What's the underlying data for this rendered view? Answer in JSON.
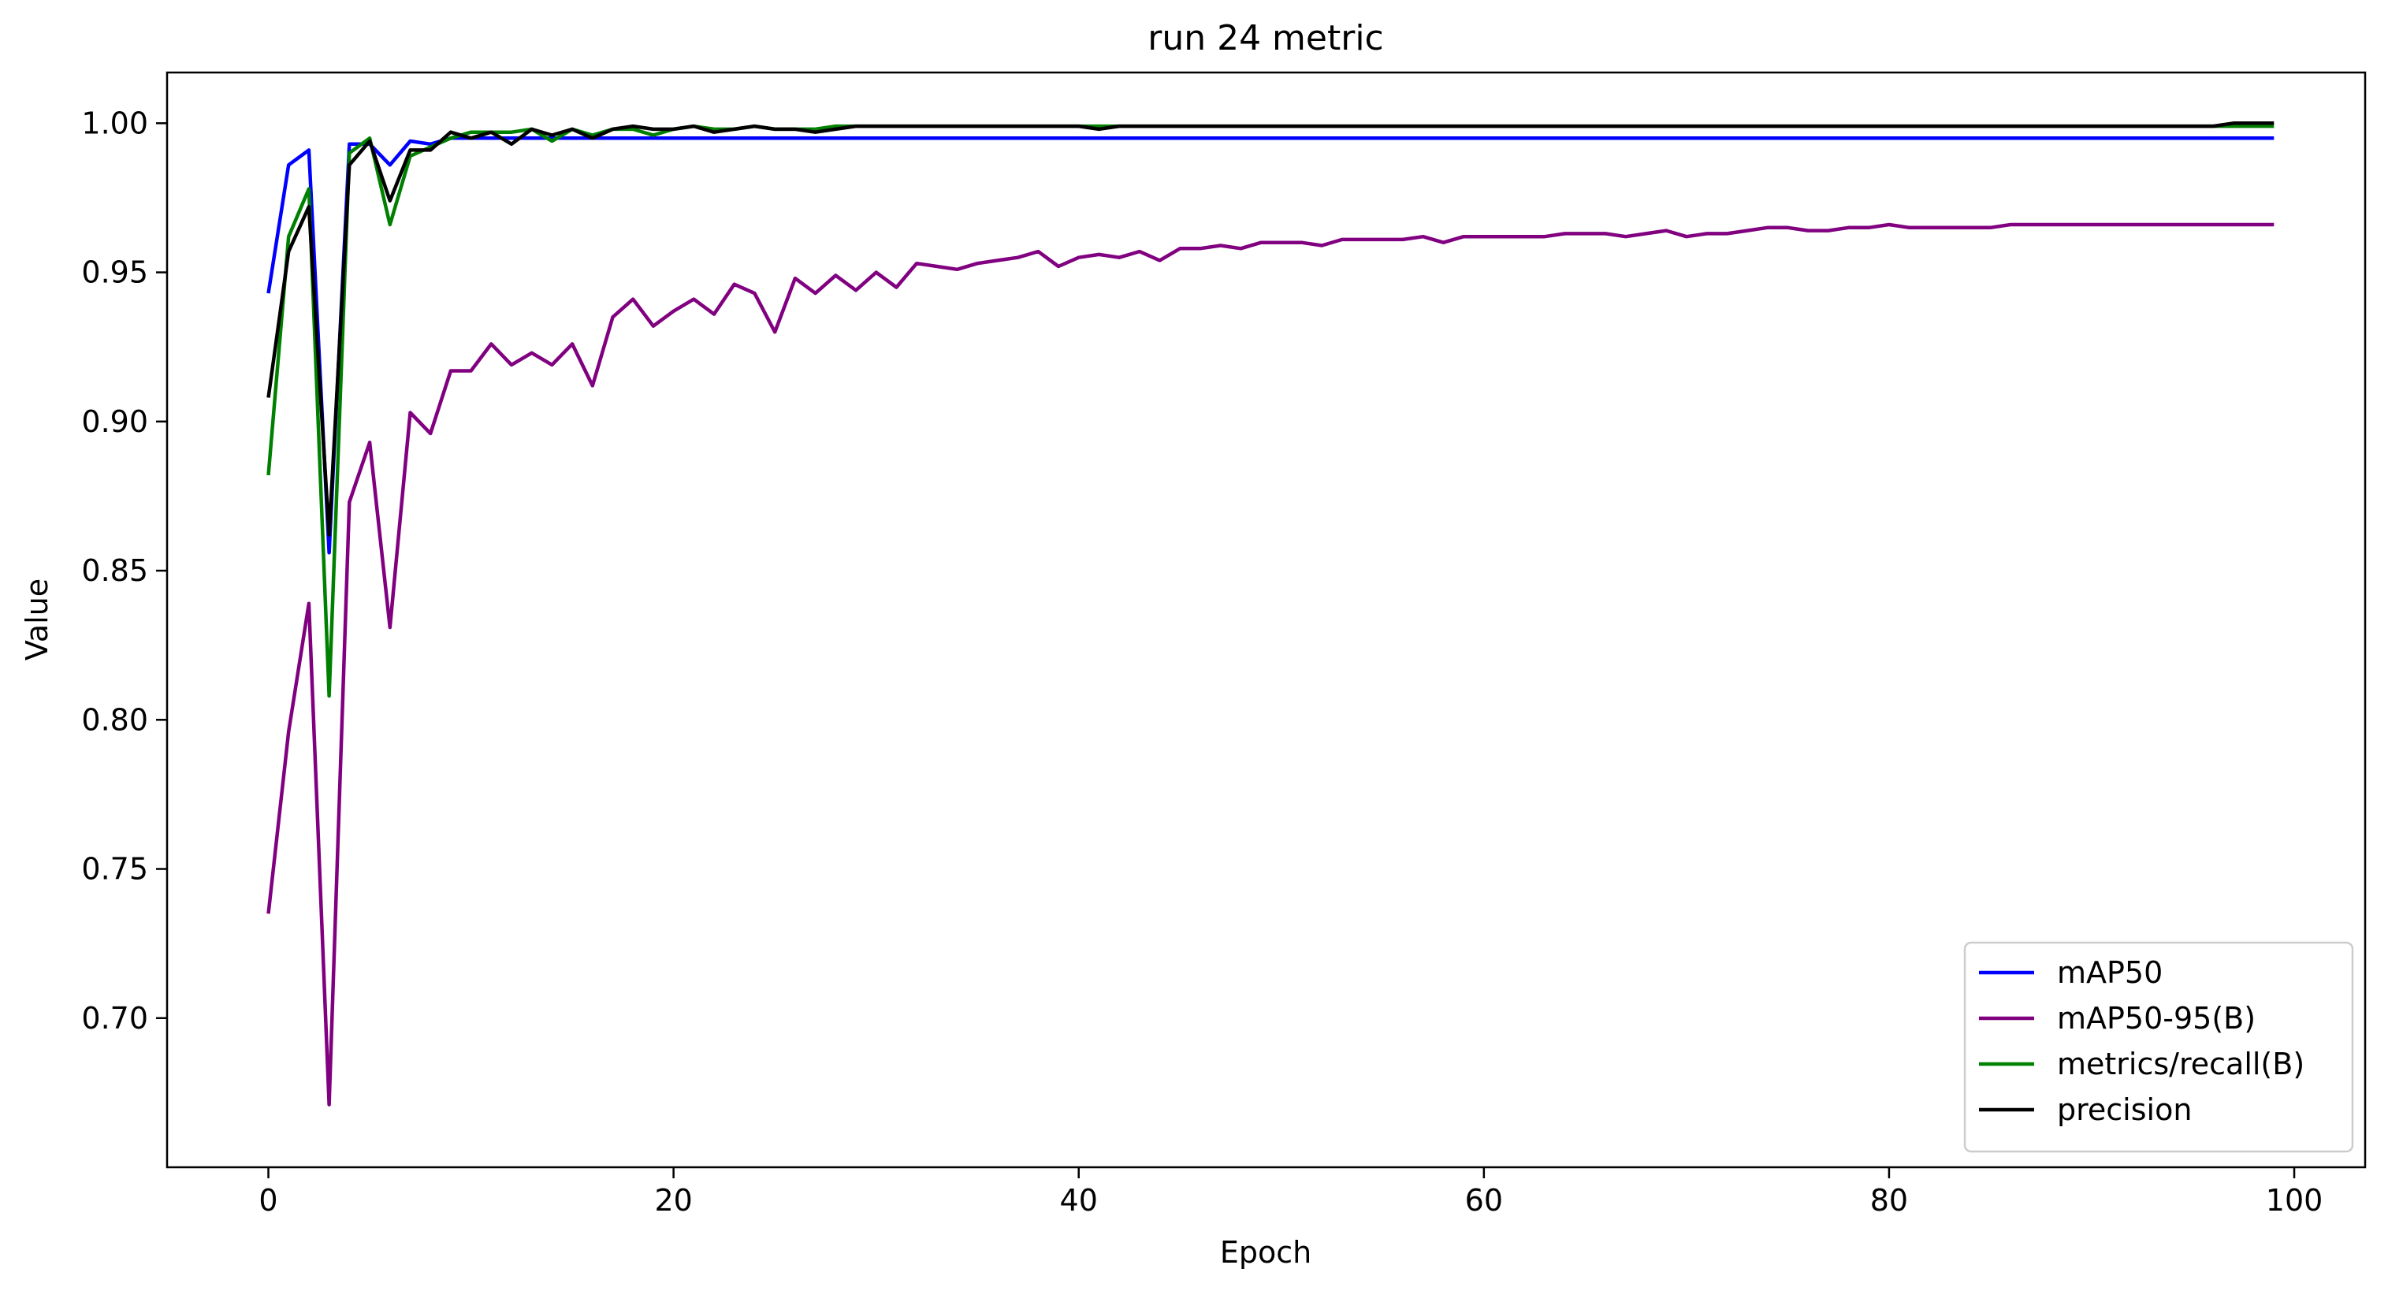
{
  "chart_data": {
    "type": "line",
    "title": "run 24 metric",
    "xlabel": "Epoch",
    "ylabel": "Value",
    "xlim": [
      -5,
      103.5
    ],
    "ylim": [
      0.65,
      1.017
    ],
    "xticks": [
      0,
      20,
      40,
      60,
      80,
      100
    ],
    "yticks": [
      0.7,
      0.75,
      0.8,
      0.85,
      0.9,
      0.95,
      1.0
    ],
    "grid": false,
    "legend_position": "lower-right",
    "x": [
      0,
      1,
      2,
      3,
      4,
      5,
      6,
      7,
      8,
      9,
      10,
      11,
      12,
      13,
      14,
      15,
      16,
      17,
      18,
      19,
      20,
      21,
      22,
      23,
      24,
      25,
      26,
      27,
      28,
      29,
      30,
      31,
      32,
      33,
      34,
      35,
      36,
      37,
      38,
      39,
      40,
      41,
      42,
      43,
      44,
      45,
      46,
      47,
      48,
      49,
      50,
      51,
      52,
      53,
      54,
      55,
      56,
      57,
      58,
      59,
      60,
      61,
      62,
      63,
      64,
      65,
      66,
      67,
      68,
      69,
      70,
      71,
      72,
      73,
      74,
      75,
      76,
      77,
      78,
      79,
      80,
      81,
      82,
      83,
      84,
      85,
      86,
      87,
      88,
      89,
      90,
      91,
      92,
      93,
      94,
      95,
      96,
      97,
      98,
      99
    ],
    "series": [
      {
        "name": "mAP50",
        "color": "#0000ff",
        "values": [
          0.943,
          0.986,
          0.991,
          0.856,
          0.993,
          0.993,
          0.986,
          0.994,
          0.993,
          0.995,
          0.995,
          0.995,
          0.995,
          0.995,
          0.995,
          0.995,
          0.995,
          0.995,
          0.995,
          0.995,
          0.995,
          0.995,
          0.995,
          0.995,
          0.995,
          0.995,
          0.995,
          0.995,
          0.995,
          0.995,
          0.995,
          0.995,
          0.995,
          0.995,
          0.995,
          0.995,
          0.995,
          0.995,
          0.995,
          0.995,
          0.995,
          0.995,
          0.995,
          0.995,
          0.995,
          0.995,
          0.995,
          0.995,
          0.995,
          0.995,
          0.995,
          0.995,
          0.995,
          0.995,
          0.995,
          0.995,
          0.995,
          0.995,
          0.995,
          0.995,
          0.995,
          0.995,
          0.995,
          0.995,
          0.995,
          0.995,
          0.995,
          0.995,
          0.995,
          0.995,
          0.995,
          0.995,
          0.995,
          0.995,
          0.995,
          0.995,
          0.995,
          0.995,
          0.995,
          0.995,
          0.995,
          0.995,
          0.995,
          0.995,
          0.995,
          0.995,
          0.995,
          0.995,
          0.995,
          0.995,
          0.995,
          0.995,
          0.995,
          0.995,
          0.995,
          0.995,
          0.995,
          0.995,
          0.995,
          0.995
        ]
      },
      {
        "name": "mAP50-95(B)",
        "color": "#800080",
        "values": [
          0.735,
          0.796,
          0.839,
          0.671,
          0.873,
          0.893,
          0.831,
          0.903,
          0.896,
          0.917,
          0.917,
          0.926,
          0.919,
          0.923,
          0.919,
          0.926,
          0.912,
          0.935,
          0.941,
          0.932,
          0.937,
          0.941,
          0.936,
          0.946,
          0.943,
          0.93,
          0.948,
          0.943,
          0.949,
          0.944,
          0.95,
          0.945,
          0.953,
          0.952,
          0.951,
          0.953,
          0.954,
          0.955,
          0.957,
          0.952,
          0.955,
          0.956,
          0.955,
          0.957,
          0.954,
          0.958,
          0.958,
          0.959,
          0.958,
          0.96,
          0.96,
          0.96,
          0.959,
          0.961,
          0.961,
          0.961,
          0.961,
          0.962,
          0.96,
          0.962,
          0.962,
          0.962,
          0.962,
          0.962,
          0.963,
          0.963,
          0.963,
          0.962,
          0.963,
          0.964,
          0.962,
          0.963,
          0.963,
          0.964,
          0.965,
          0.965,
          0.964,
          0.964,
          0.965,
          0.965,
          0.966,
          0.965,
          0.965,
          0.965,
          0.965,
          0.965,
          0.966,
          0.966,
          0.966,
          0.966,
          0.966,
          0.966,
          0.966,
          0.966,
          0.966,
          0.966,
          0.966,
          0.966,
          0.966,
          0.966
        ]
      },
      {
        "name": "metrics/recall(B)",
        "color": "#008000",
        "values": [
          0.882,
          0.962,
          0.978,
          0.808,
          0.99,
          0.995,
          0.966,
          0.989,
          0.992,
          0.995,
          0.997,
          0.997,
          0.997,
          0.998,
          0.994,
          0.998,
          0.996,
          0.998,
          0.998,
          0.996,
          0.998,
          0.999,
          0.998,
          0.998,
          0.999,
          0.998,
          0.998,
          0.998,
          0.999,
          0.999,
          0.999,
          0.999,
          0.999,
          0.999,
          0.999,
          0.999,
          0.999,
          0.999,
          0.999,
          0.999,
          0.999,
          0.999,
          0.999,
          0.999,
          0.999,
          0.999,
          0.999,
          0.999,
          0.999,
          0.999,
          0.999,
          0.999,
          0.999,
          0.999,
          0.999,
          0.999,
          0.999,
          0.999,
          0.999,
          0.999,
          0.999,
          0.999,
          0.999,
          0.999,
          0.999,
          0.999,
          0.999,
          0.999,
          0.999,
          0.999,
          0.999,
          0.999,
          0.999,
          0.999,
          0.999,
          0.999,
          0.999,
          0.999,
          0.999,
          0.999,
          0.999,
          0.999,
          0.999,
          0.999,
          0.999,
          0.999,
          0.999,
          0.999,
          0.999,
          0.999,
          0.999,
          0.999,
          0.999,
          0.999,
          0.999,
          0.999,
          0.999,
          0.999,
          0.999,
          0.999
        ]
      },
      {
        "name": "precision",
        "color": "#000000",
        "values": [
          0.908,
          0.957,
          0.972,
          0.862,
          0.986,
          0.994,
          0.974,
          0.991,
          0.991,
          0.997,
          0.995,
          0.997,
          0.993,
          0.998,
          0.996,
          0.998,
          0.995,
          0.998,
          0.999,
          0.998,
          0.998,
          0.999,
          0.997,
          0.998,
          0.999,
          0.998,
          0.998,
          0.997,
          0.998,
          0.999,
          0.999,
          0.999,
          0.999,
          0.999,
          0.999,
          0.999,
          0.999,
          0.999,
          0.999,
          0.999,
          0.999,
          0.998,
          0.999,
          0.999,
          0.999,
          0.999,
          0.999,
          0.999,
          0.999,
          0.999,
          0.999,
          0.999,
          0.999,
          0.999,
          0.999,
          0.999,
          0.999,
          0.999,
          0.999,
          0.999,
          0.999,
          0.999,
          0.999,
          0.999,
          0.999,
          0.999,
          0.999,
          0.999,
          0.999,
          0.999,
          0.999,
          0.999,
          0.999,
          0.999,
          0.999,
          0.999,
          0.999,
          0.999,
          0.999,
          0.999,
          0.999,
          0.999,
          0.999,
          0.999,
          0.999,
          0.999,
          0.999,
          0.999,
          0.999,
          0.999,
          0.999,
          0.999,
          0.999,
          0.999,
          0.999,
          0.999,
          0.999,
          1.0,
          1.0,
          1.0
        ]
      }
    ]
  }
}
